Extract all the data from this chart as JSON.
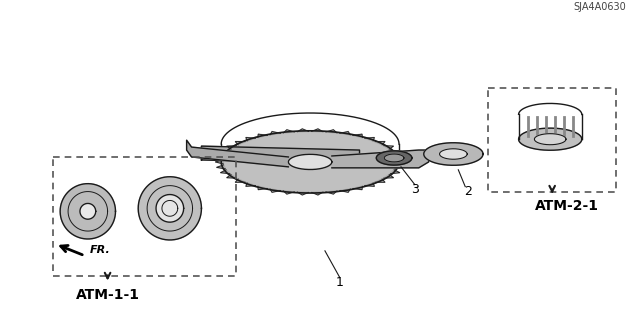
{
  "title": "",
  "background_color": "#ffffff",
  "diagram_id": "SJA4A0630",
  "labels": {
    "ATM_1_1": "ATM-1-1",
    "ATM_2_1": "ATM-2-1",
    "FR": "FR.",
    "part1": "1",
    "part2": "2",
    "part3": "3",
    "diagram_code": "SJA4A0630"
  },
  "colors": {
    "line": "#1a1a1a",
    "dashed_box": "#555555",
    "fill_light": "#d8d8d8",
    "fill_gear": "#b0b0b0",
    "fill_dark": "#888888",
    "text": "#000000",
    "background": "#ffffff"
  }
}
